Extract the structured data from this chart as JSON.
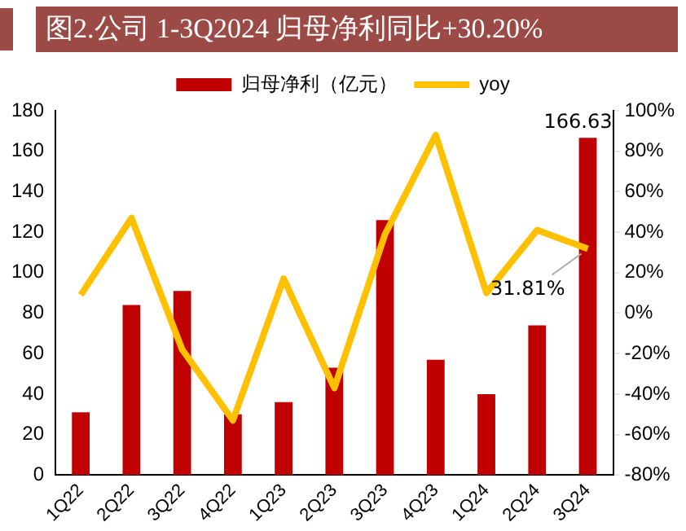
{
  "chart_data": {
    "type": "bar",
    "title": "图2.公司 1-3Q2024 归母净利同比+30.20%",
    "categories": [
      "1Q22",
      "2Q22",
      "3Q22",
      "4Q22",
      "1Q23",
      "2Q23",
      "3Q23",
      "4Q23",
      "1Q24",
      "2Q24",
      "3Q24"
    ],
    "series": [
      {
        "name": "归母净利（亿元）",
        "color": "#c00000",
        "values": [
          31,
          84,
          91,
          30,
          36,
          53,
          126,
          57,
          40,
          74,
          166.63
        ],
        "value_labels": [
          null,
          null,
          null,
          null,
          null,
          null,
          null,
          null,
          null,
          null,
          "166.63"
        ]
      },
      {
        "name": "yoy",
        "type": "line",
        "axis": "y2",
        "color": "#ffc000",
        "values": [
          9,
          47,
          -18,
          -53,
          17,
          -37,
          39,
          88,
          10,
          41,
          31.81
        ],
        "value_labels": [
          null,
          null,
          null,
          null,
          null,
          null,
          null,
          null,
          null,
          null,
          "31.81%"
        ]
      }
    ],
    "ylim": [
      0,
      180
    ],
    "yticks": [
      0,
      20,
      40,
      60,
      80,
      100,
      120,
      140,
      160,
      180
    ],
    "y2lim": [
      -80,
      100
    ],
    "y2ticks": [
      {
        "value": -80,
        "label": "-80%"
      },
      {
        "value": -60,
        "label": "-60%"
      },
      {
        "value": -40,
        "label": "-40%"
      },
      {
        "value": -20,
        "label": "-20%"
      },
      {
        "value": 0,
        "label": "0%"
      },
      {
        "value": 20,
        "label": "20%"
      },
      {
        "value": 40,
        "label": "40%"
      },
      {
        "value": 60,
        "label": "60%"
      },
      {
        "value": 80,
        "label": "80%"
      },
      {
        "value": 100,
        "label": "100%"
      }
    ],
    "legend": "top",
    "grid": false,
    "marker": "none",
    "line_style": "solid"
  }
}
